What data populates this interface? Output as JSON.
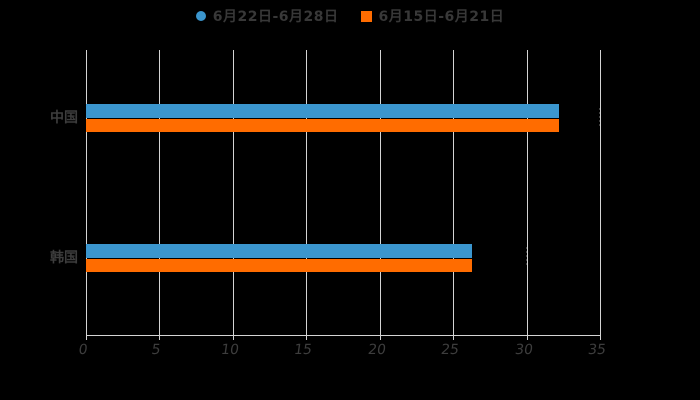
{
  "chart_data": {
    "type": "bar",
    "orientation": "horizontal",
    "title": "",
    "xlabel": "",
    "ylabel": "",
    "categories": [
      "中国",
      "韩国"
    ],
    "series": [
      {
        "name": "6月22日-6月28日",
        "marker": "circle",
        "color": "#3b96ce",
        "values": [
          32.2,
          26.3
        ]
      },
      {
        "name": "6月15日-6月21日",
        "marker": "square",
        "color": "#ff6c00",
        "values": [
          32.2,
          26.3
        ]
      }
    ],
    "x_ticks": [
      0,
      5,
      10,
      15,
      20,
      25,
      30,
      35
    ],
    "xlim": [
      0,
      35
    ],
    "grid": "vertical-gridlines-on",
    "legend_position": "top-center",
    "background_color": "#000000",
    "gridline_color": "#d4d4d4",
    "text_color": "#3d3d3d"
  }
}
